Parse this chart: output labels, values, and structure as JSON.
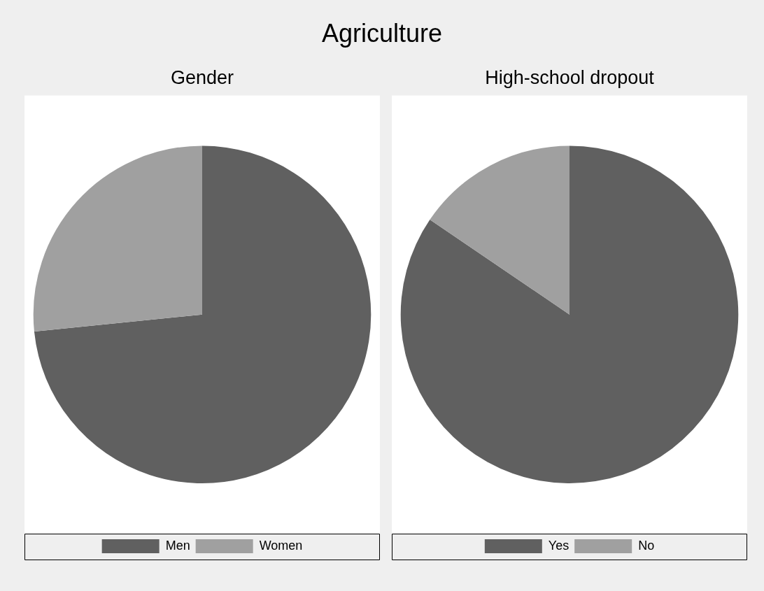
{
  "chart_data": [
    {
      "type": "pie",
      "title": "Gender",
      "annotations": [
        "Agriculture"
      ],
      "categories": [
        "Men",
        "Women"
      ],
      "values": [
        73.4,
        26.6
      ],
      "colors": [
        "#606060",
        "#a0a0a0"
      ],
      "legend": "bottom"
    },
    {
      "type": "pie",
      "title": "High-school dropout",
      "categories": [
        "Yes",
        "No"
      ],
      "values": [
        84.5,
        15.5
      ],
      "colors": [
        "#606060",
        "#a0a0a0"
      ],
      "legend": "bottom"
    }
  ]
}
